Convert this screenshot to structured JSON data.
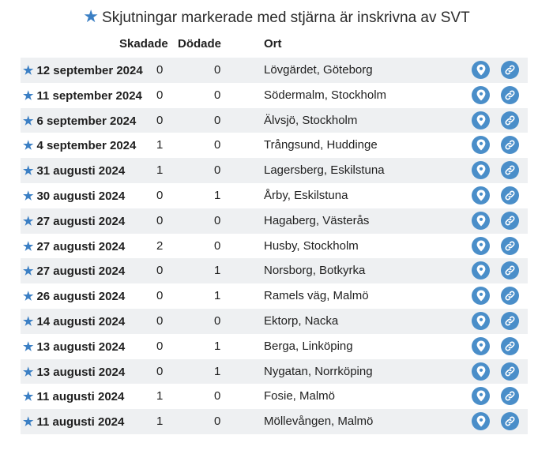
{
  "title": "Skjutningar markerade med stjärna är inskrivna av SVT",
  "title_icon": "star-icon",
  "headers": {
    "injured": "Skadade",
    "dead": "Dödade",
    "place": "Ort"
  },
  "accent_color": "#3b7fc4",
  "rows": [
    {
      "date": "12 september 2024",
      "injured": "0",
      "dead": "0",
      "place": "Lövgärdet, Göteborg"
    },
    {
      "date": "11 september 2024",
      "injured": "0",
      "dead": "0",
      "place": "Södermalm, Stockholm"
    },
    {
      "date": "6 september 2024",
      "injured": "0",
      "dead": "0",
      "place": "Älvsjö, Stockholm"
    },
    {
      "date": "4 september 2024",
      "injured": "1",
      "dead": "0",
      "place": "Trångsund, Huddinge"
    },
    {
      "date": "31 augusti 2024",
      "injured": "1",
      "dead": "0",
      "place": "Lagersberg, Eskilstuna"
    },
    {
      "date": "30 augusti 2024",
      "injured": "0",
      "dead": "1",
      "place": "Årby, Eskilstuna"
    },
    {
      "date": "27 augusti 2024",
      "injured": "0",
      "dead": "0",
      "place": "Hagaberg, Västerås"
    },
    {
      "date": "27 augusti 2024",
      "injured": "2",
      "dead": "0",
      "place": "Husby, Stockholm"
    },
    {
      "date": "27 augusti 2024",
      "injured": "0",
      "dead": "1",
      "place": "Norsborg, Botkyrka"
    },
    {
      "date": "26 augusti 2024",
      "injured": "0",
      "dead": "1",
      "place": "Ramels väg, Malmö"
    },
    {
      "date": "14 augusti 2024",
      "injured": "0",
      "dead": "0",
      "place": "Ektorp, Nacka"
    },
    {
      "date": "13 augusti 2024",
      "injured": "0",
      "dead": "1",
      "place": "Berga, Linköping"
    },
    {
      "date": "13 augusti 2024",
      "injured": "0",
      "dead": "1",
      "place": "Nygatan, Norrköping"
    },
    {
      "date": "11 augusti 2024",
      "injured": "1",
      "dead": "0",
      "place": "Fosie, Malmö"
    },
    {
      "date": "11 augusti 2024",
      "injured": "1",
      "dead": "0",
      "place": "Möllevången, Malmö"
    }
  ]
}
